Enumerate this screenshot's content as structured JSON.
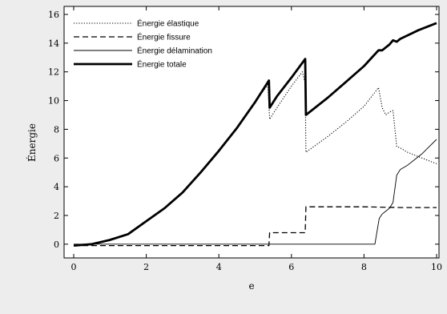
{
  "chart_data": {
    "type": "line",
    "title": "",
    "xlabel": "e",
    "ylabel": "Énergie",
    "xlim": [
      0,
      10
    ],
    "ylim": [
      -0.4,
      16
    ],
    "xticks": [
      "0",
      "2",
      "4",
      "6",
      "8",
      "10"
    ],
    "yticks": [
      "0",
      "2",
      "4",
      "6",
      "8",
      "10",
      "12",
      "14",
      "16"
    ],
    "grid": false,
    "legend_position": "top-left",
    "series": [
      {
        "name": "Énergie élastique",
        "style": "dotted",
        "x": [
          0,
          0.5,
          1.0,
          1.5,
          2.0,
          2.5,
          3.0,
          3.5,
          4.0,
          4.5,
          5.0,
          5.35,
          5.4,
          5.6,
          6.0,
          6.3,
          6.38,
          6.4,
          7.0,
          7.5,
          8.0,
          8.4,
          8.5,
          8.6,
          8.7,
          8.8,
          8.9,
          9.0,
          9.2,
          9.5,
          9.8,
          10.0
        ],
        "y": [
          -0.1,
          0.0,
          0.3,
          0.7,
          1.6,
          2.5,
          3.6,
          5.0,
          6.5,
          8.1,
          9.9,
          11.1,
          8.7,
          9.5,
          11.0,
          12.0,
          11.2,
          6.4,
          7.5,
          8.5,
          9.6,
          10.9,
          9.5,
          9.0,
          9.2,
          9.3,
          6.8,
          6.7,
          6.4,
          6.1,
          5.8,
          5.6
        ]
      },
      {
        "name": "Énergie fissure",
        "style": "dashed",
        "x": [
          0,
          1.0,
          2.0,
          3.0,
          4.0,
          5.0,
          5.38,
          5.4,
          6.0,
          6.38,
          6.4,
          7.0,
          8.0,
          9.0,
          10.0
        ],
        "y": [
          -0.1,
          -0.1,
          -0.1,
          -0.1,
          -0.1,
          -0.1,
          -0.1,
          0.8,
          0.8,
          0.8,
          2.6,
          2.6,
          2.6,
          2.55,
          2.55
        ]
      },
      {
        "name": "Énergie délamination",
        "style": "solid-thin",
        "x": [
          0,
          2.0,
          5.38,
          5.4,
          8.3,
          8.42,
          8.5,
          8.6,
          8.7,
          8.8,
          8.9,
          9.0,
          9.2,
          9.4,
          9.6,
          9.8,
          10.0
        ],
        "y": [
          0,
          0,
          0,
          0,
          0,
          1.8,
          2.1,
          2.3,
          2.5,
          2.9,
          4.8,
          5.2,
          5.5,
          5.9,
          6.3,
          6.8,
          7.3
        ]
      },
      {
        "name": "Énergie totale",
        "style": "solid-thick",
        "x": [
          0,
          0.5,
          1.0,
          1.5,
          2.0,
          2.5,
          3.0,
          3.5,
          4.0,
          4.5,
          5.0,
          5.38,
          5.4,
          5.6,
          6.0,
          6.38,
          6.4,
          7.0,
          7.5,
          8.0,
          8.4,
          8.5,
          8.7,
          8.8,
          8.9,
          9.0,
          9.5,
          10.0
        ],
        "y": [
          -0.1,
          0.0,
          0.3,
          0.7,
          1.6,
          2.5,
          3.6,
          5.0,
          6.5,
          8.1,
          9.9,
          11.4,
          9.5,
          10.3,
          11.6,
          12.9,
          9.0,
          10.2,
          11.3,
          12.4,
          13.5,
          13.5,
          13.9,
          14.2,
          14.1,
          14.3,
          14.9,
          15.4
        ]
      }
    ]
  }
}
